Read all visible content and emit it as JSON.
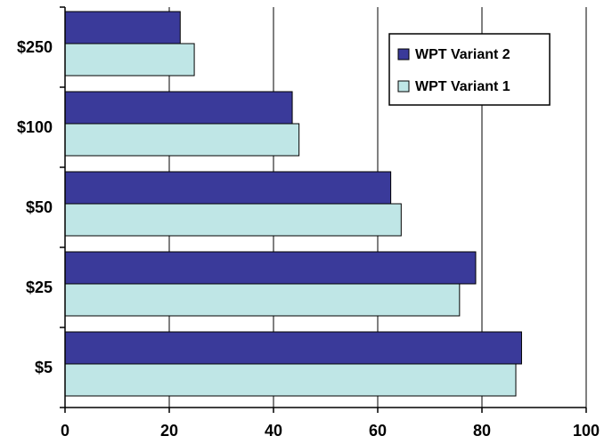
{
  "chart_data": {
    "type": "bar",
    "orientation": "horizontal",
    "categories": [
      "$5",
      "$25",
      "$50",
      "$100",
      "$250"
    ],
    "series": [
      {
        "name": "WPT Variant 1",
        "color": "#bfe6e6",
        "values": [
          86.5,
          75.7,
          64.5,
          44.9,
          24.8
        ]
      },
      {
        "name": "WPT Variant 2",
        "color": "#3a3a9a",
        "values": [
          87.6,
          78.8,
          62.5,
          43.6,
          22.1
        ]
      }
    ],
    "legend_order": [
      "WPT Variant 2",
      "WPT Variant 1"
    ],
    "xlim": [
      0,
      100
    ],
    "xticks": [
      0,
      20,
      40,
      60,
      80,
      100
    ],
    "grid": "vertical",
    "legend_position": "top-right",
    "title": "",
    "xlabel": "",
    "ylabel": ""
  }
}
